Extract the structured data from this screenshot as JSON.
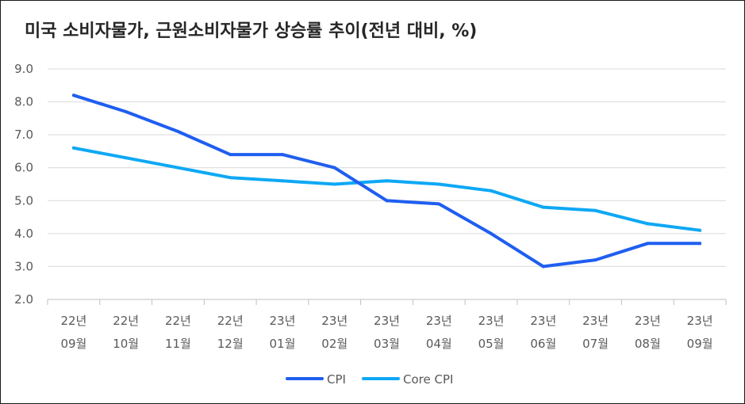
{
  "chart_data": {
    "type": "line",
    "title": "미국 소비자물가, 근원소비자물가 상승률 추이(전년 대비, %)",
    "xlabel": "",
    "ylabel": "",
    "ylim": [
      2.0,
      9.0
    ],
    "ytick_step": 1.0,
    "ytick_labels": [
      "2.0",
      "3.0",
      "4.0",
      "5.0",
      "6.0",
      "7.0",
      "8.0",
      "9.0"
    ],
    "grid": true,
    "legend_position": "bottom",
    "categories": [
      {
        "year": "22년",
        "month": "09월"
      },
      {
        "year": "22년",
        "month": "10월"
      },
      {
        "year": "22년",
        "month": "11월"
      },
      {
        "year": "22년",
        "month": "12월"
      },
      {
        "year": "23년",
        "month": "01월"
      },
      {
        "year": "23년",
        "month": "02월"
      },
      {
        "year": "23년",
        "month": "03월"
      },
      {
        "year": "23년",
        "month": "04월"
      },
      {
        "year": "23년",
        "month": "05월"
      },
      {
        "year": "23년",
        "month": "06월"
      },
      {
        "year": "23년",
        "month": "07월"
      },
      {
        "year": "23년",
        "month": "08월"
      },
      {
        "year": "23년",
        "month": "09월"
      }
    ],
    "series": [
      {
        "name": "CPI",
        "color": "#1f5ef0",
        "values": [
          8.2,
          7.7,
          7.1,
          6.4,
          6.4,
          6.0,
          5.0,
          4.9,
          4.0,
          3.0,
          3.2,
          3.7,
          3.7
        ]
      },
      {
        "name": "Core CPI",
        "color": "#0ea8f5",
        "values": [
          6.6,
          6.3,
          6.0,
          5.7,
          5.6,
          5.5,
          5.6,
          5.5,
          5.3,
          4.8,
          4.7,
          4.3,
          4.1
        ]
      }
    ]
  }
}
